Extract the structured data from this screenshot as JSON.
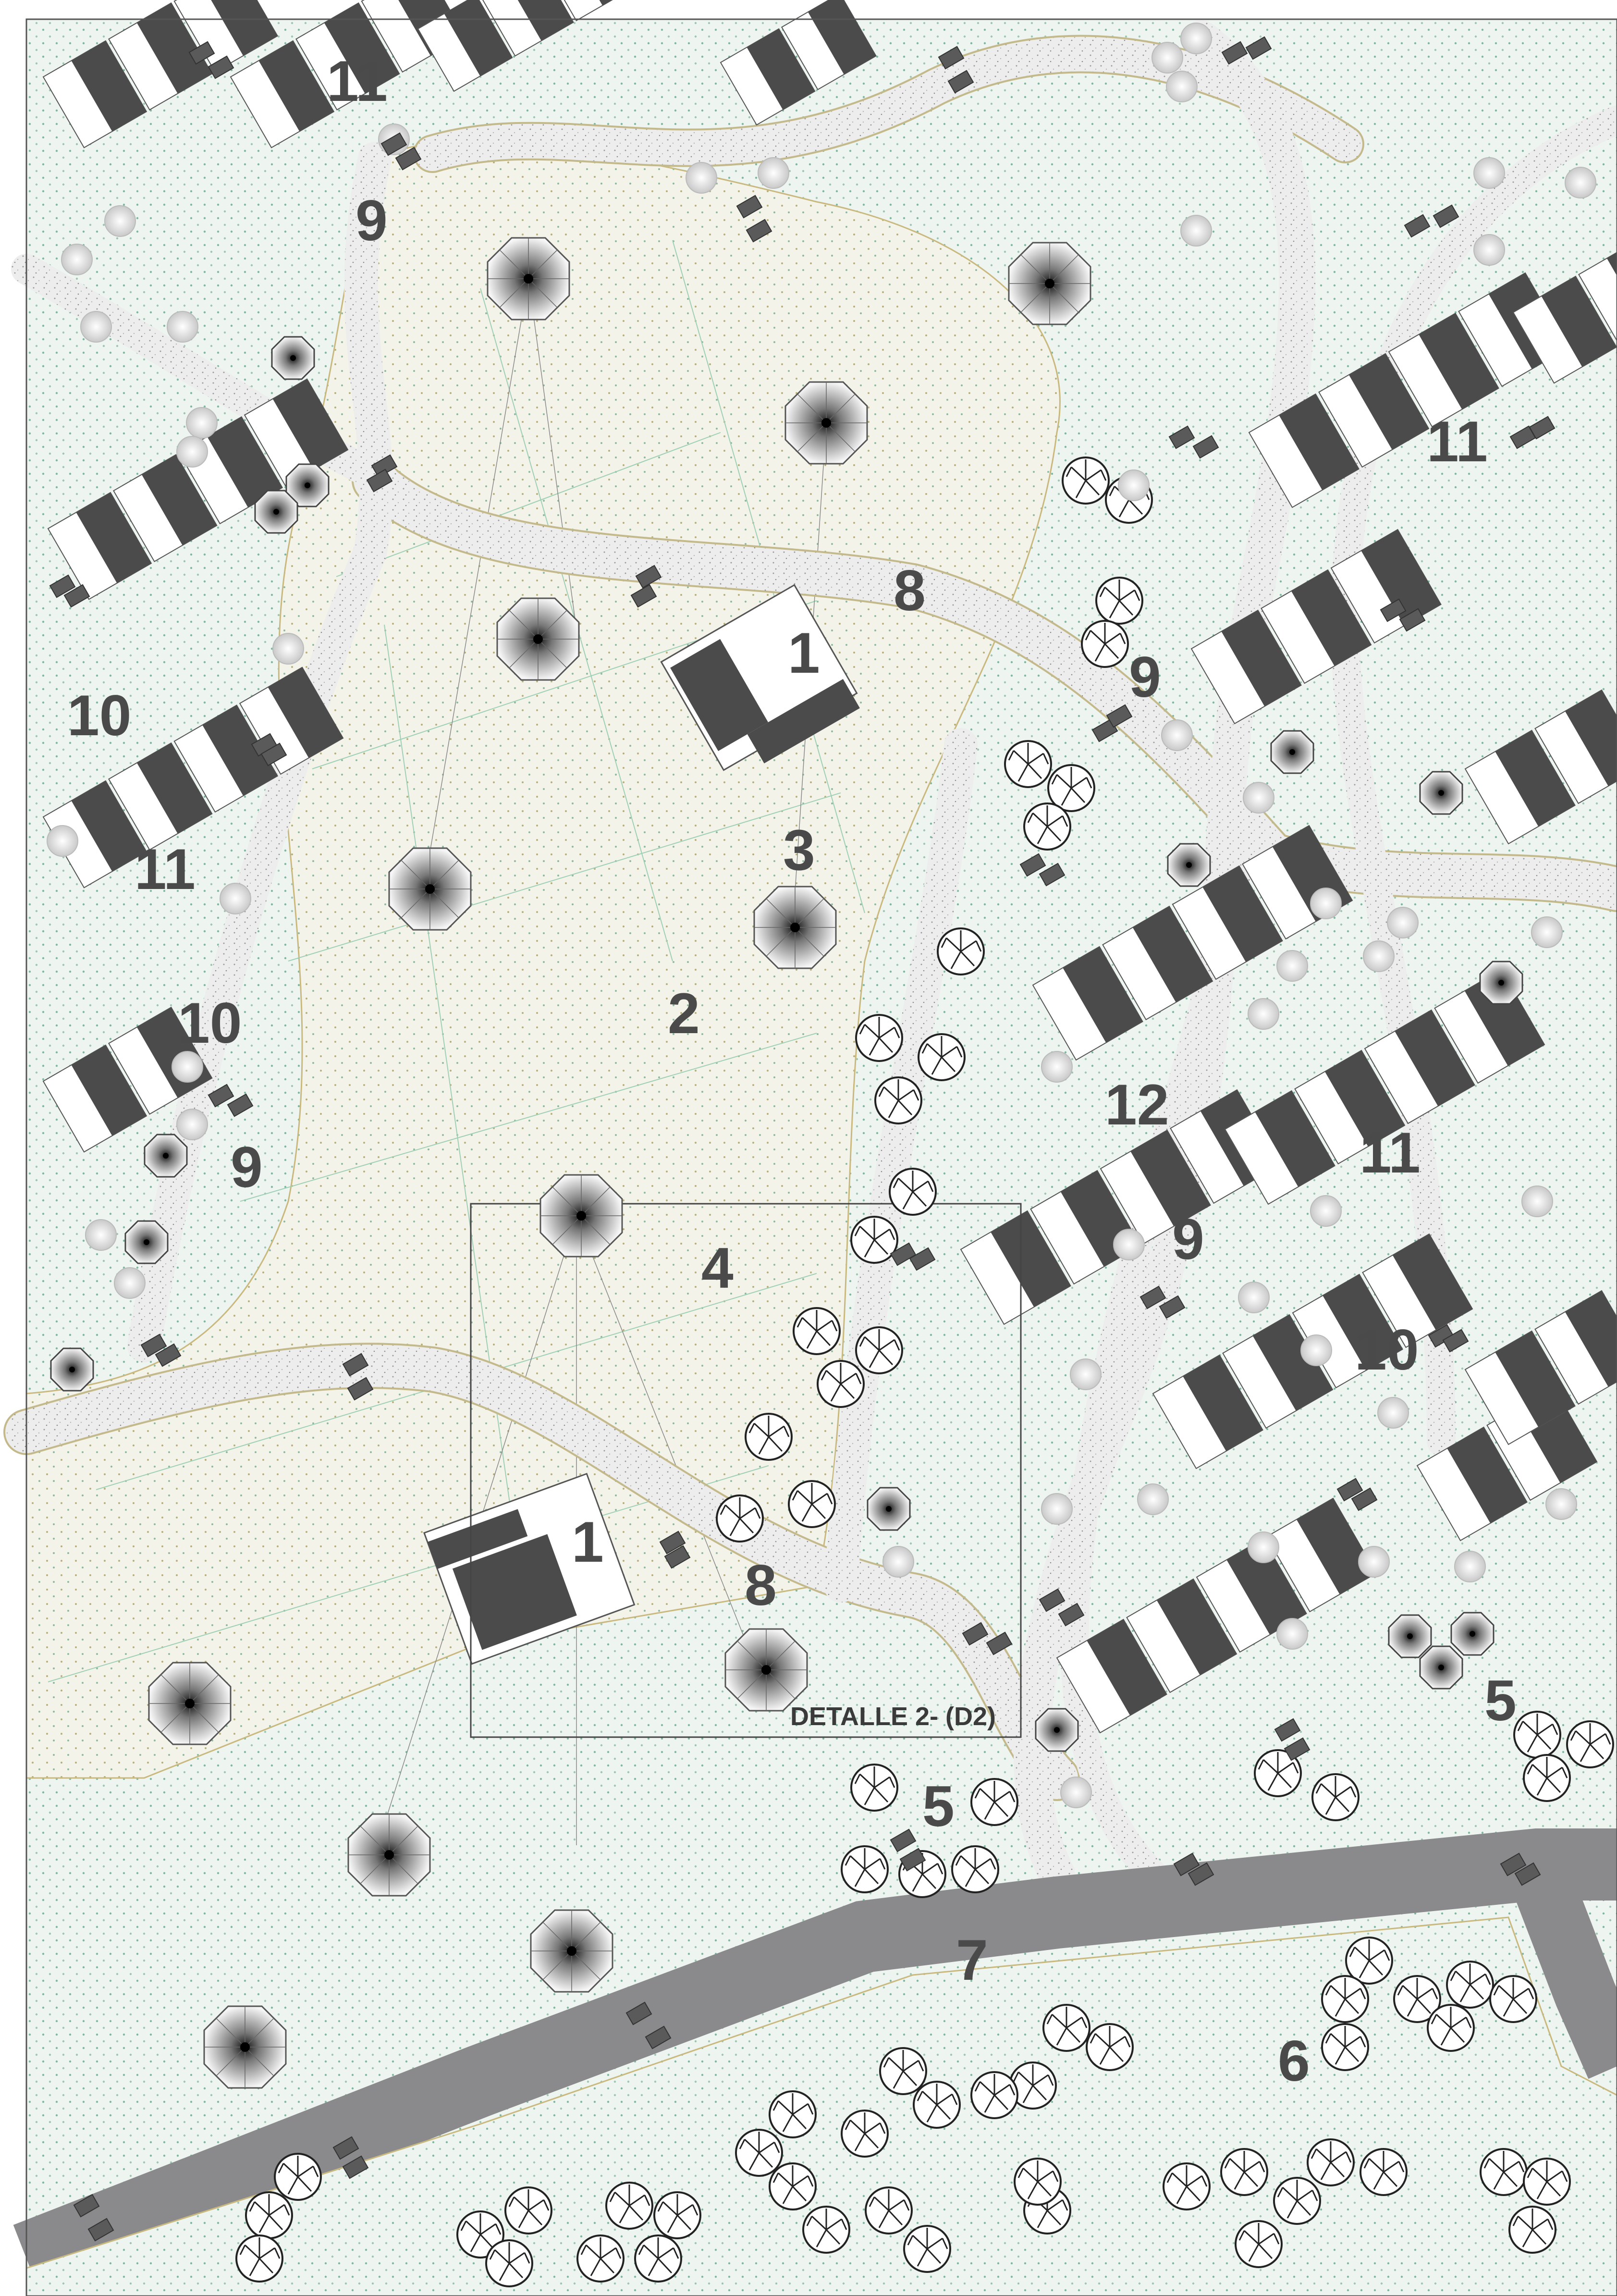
{
  "plan": {
    "detail_frame": {
      "label": "DETALLE 2- (D2)"
    },
    "zone_labels": [
      {
        "id": "l1a",
        "text": "1"
      },
      {
        "id": "l1b",
        "text": "1"
      },
      {
        "id": "l2",
        "text": "2"
      },
      {
        "id": "l3",
        "text": "3"
      },
      {
        "id": "l4",
        "text": "4"
      },
      {
        "id": "l5a",
        "text": "5"
      },
      {
        "id": "l5b",
        "text": "5"
      },
      {
        "id": "l6",
        "text": "6"
      },
      {
        "id": "l7",
        "text": "7"
      },
      {
        "id": "l8a",
        "text": "8"
      },
      {
        "id": "l8b",
        "text": "8"
      },
      {
        "id": "l9a",
        "text": "9"
      },
      {
        "id": "l9b",
        "text": "9"
      },
      {
        "id": "l9c",
        "text": "9"
      },
      {
        "id": "l9d",
        "text": "9"
      },
      {
        "id": "l10a",
        "text": "10"
      },
      {
        "id": "l10b",
        "text": "10"
      },
      {
        "id": "l10c",
        "text": "10"
      },
      {
        "id": "l11a",
        "text": "11"
      },
      {
        "id": "l11b",
        "text": "11"
      },
      {
        "id": "l11c",
        "text": "11"
      },
      {
        "id": "l11d",
        "text": "11"
      },
      {
        "id": "l12",
        "text": "12"
      }
    ],
    "colors": {
      "background": "#eaf3ee",
      "path": "#e9ebea",
      "road": "#8a8a8c",
      "building_dark": "#4b4b4b",
      "building_light": "#ffffff",
      "label": "#4a4a4a"
    },
    "icons": [
      "octagonal-pavilion-icon",
      "bench-icon",
      "tree-icon",
      "shrub-icon",
      "umbrella-icon"
    ]
  }
}
